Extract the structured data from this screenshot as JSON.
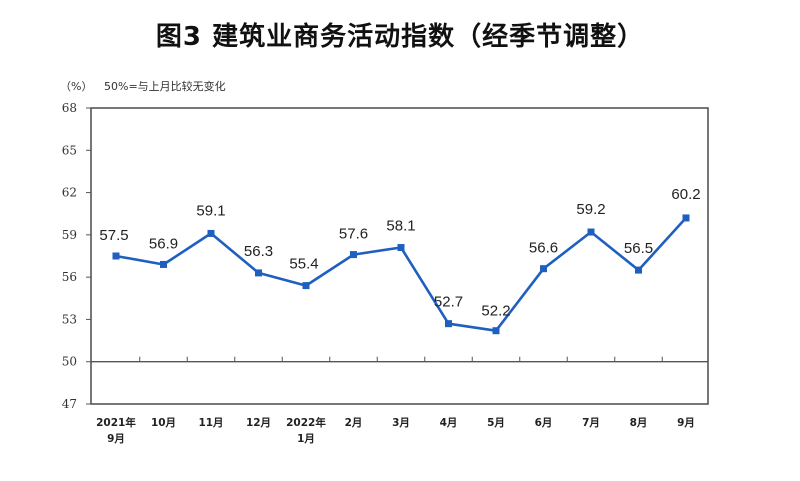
{
  "chart_data": {
    "type": "line",
    "title": "图3  建筑业商务活动指数（经季节调整）",
    "ylabel": "（%）",
    "annotation": "50%=与上月比较无变化",
    "xlabel": "",
    "ylim": [
      47,
      68
    ],
    "yticks": [
      47,
      50,
      53,
      56,
      59,
      62,
      65,
      68
    ],
    "reference_line": 50,
    "grid": false,
    "legend": null,
    "categories": [
      "2021年\n9月",
      "10月",
      "11月",
      "12月",
      "2022年\n1月",
      "2月",
      "3月",
      "4月",
      "5月",
      "6月",
      "7月",
      "8月",
      "9月"
    ],
    "category_lines": [
      [
        "2021年",
        "9月"
      ],
      [
        "10月"
      ],
      [
        "11月"
      ],
      [
        "12月"
      ],
      [
        "2022年",
        "1月"
      ],
      [
        "2月"
      ],
      [
        "3月"
      ],
      [
        "4月"
      ],
      [
        "5月"
      ],
      [
        "6月"
      ],
      [
        "7月"
      ],
      [
        "8月"
      ],
      [
        "9月"
      ]
    ],
    "series": [
      {
        "name": "建筑业商务活动指数",
        "color": "#1f5fbf",
        "marker": "square",
        "values": [
          57.5,
          56.9,
          59.1,
          56.3,
          55.4,
          57.6,
          58.1,
          52.7,
          52.2,
          56.6,
          59.2,
          56.5,
          60.2
        ],
        "labels": [
          "57.5",
          "56.9",
          "59.1",
          "56.3",
          "55.4",
          "57.6",
          "58.1",
          "52.7",
          "52.2",
          "56.6",
          "59.2",
          "56.5",
          "60.2"
        ]
      }
    ]
  },
  "header": {
    "title": "图3  建筑业商务活动指数（经季节调整）",
    "unit": "（%）",
    "note": "50%=与上月比较无变化"
  },
  "colors": {
    "line": "#1f5fbf",
    "axis": "#555555",
    "text": "#222222"
  }
}
